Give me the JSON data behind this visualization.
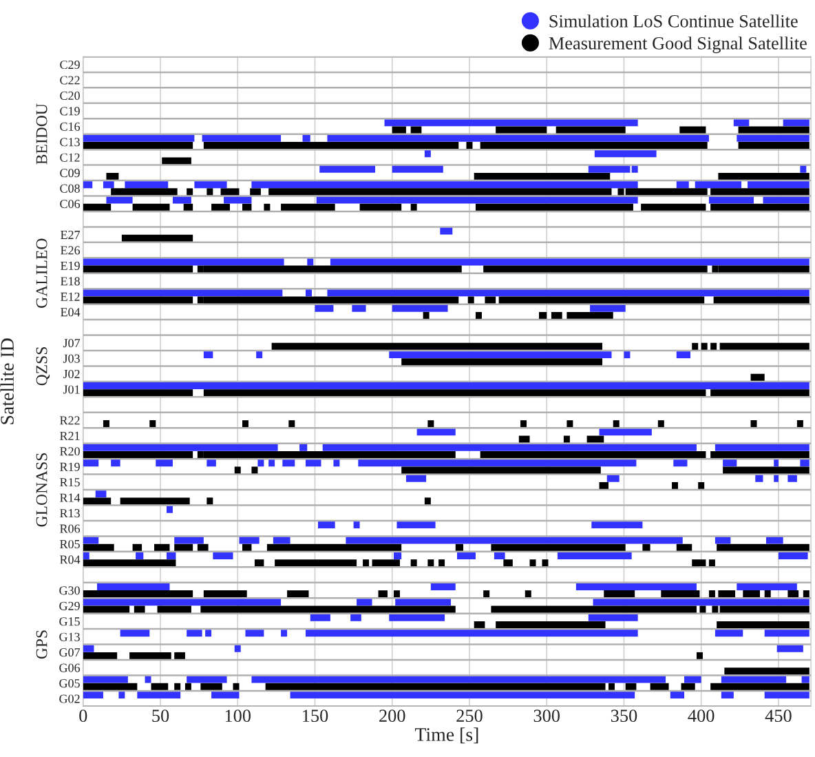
{
  "chart_data": {
    "type": "bar",
    "orientation": "horizontal",
    "xlabel": "Time [s]",
    "ylabel": "Satellite ID",
    "xlim": [
      0,
      471
    ],
    "xticks": [
      0,
      50,
      100,
      150,
      200,
      250,
      300,
      350,
      400,
      450
    ],
    "categories": [
      "C29",
      "C22",
      "C20",
      "C19",
      "C16",
      "C13",
      "C12",
      "C09",
      "C08",
      "C06",
      null,
      "E27",
      "E26",
      "E19",
      "E18",
      "E12",
      "E04",
      null,
      "J07",
      "J03",
      "J02",
      "J01",
      null,
      "R22",
      "R21",
      "R20",
      "R19",
      "R15",
      "R14",
      "R13",
      "R06",
      "R05",
      "R04",
      null,
      "G30",
      "G29",
      "G15",
      "G13",
      "G07",
      "G06",
      "G05",
      "G02"
    ],
    "annotations": [
      "BEIDOU",
      "GALILEO",
      "QZSS",
      "GLONASS",
      "GPS"
    ],
    "grid": true,
    "legend": "top right",
    "series": [
      {
        "name": "Simulation LoS Continue Satellite",
        "color": "#3333ff",
        "x": [
          "C16",
          "C16",
          "C16",
          "C13",
          "C13",
          "C13",
          "C13",
          "C13",
          "C12",
          "C12",
          "C09",
          "C09",
          "C09",
          "C09",
          "C09",
          "C08",
          "C08",
          "C08",
          "C08",
          "C08",
          "C08",
          "C08",
          "C08",
          "C06",
          "C06",
          "C06",
          "C06",
          "C06",
          "C06",
          "E27",
          "E19",
          "E19",
          "E19",
          "E12",
          "E12",
          "E12",
          "E04",
          "E04",
          "E04",
          "E04",
          "J03",
          "J03",
          "J03",
          "J03",
          "J03",
          "J01",
          "R21",
          "R21",
          "R20",
          "R20",
          "R20",
          "R20",
          "R19",
          "R19",
          "R19",
          "R19",
          "R19",
          "R19",
          "R19",
          "R19",
          "R19",
          "R19",
          "R19",
          "R19",
          "R19",
          "R19",
          "R15",
          "R15",
          "R15",
          "R15",
          "R15",
          "R14",
          "R13",
          "R06",
          "R06",
          "R06",
          "R06",
          "R05",
          "R05",
          "R05",
          "R05",
          "R05",
          "R05",
          "R05",
          "R04",
          "R04",
          "R04",
          "R04",
          "R04",
          "R04",
          "R04",
          "R04",
          "R04",
          "G30",
          "G30",
          "G30",
          "G30",
          "G29",
          "G29",
          "G29",
          "G29",
          "G15",
          "G15",
          "G15",
          "G15",
          "G13",
          "G13",
          "G13",
          "G13",
          "G13",
          "G13",
          "G13",
          "G13",
          "G07",
          "G07",
          "G07",
          "G05",
          "G05",
          "G05",
          "G05",
          "G05",
          "G05",
          "G05",
          "G02",
          "G02",
          "G02",
          "G02",
          "G02",
          "G02",
          "G02",
          "G02"
        ],
        "base": [
          195,
          421,
          453,
          0,
          77,
          142,
          158,
          423,
          221,
          331,
          153,
          200,
          327,
          355,
          464,
          0,
          13,
          27,
          72,
          109,
          384,
          396,
          430,
          15,
          58,
          91,
          151,
          405,
          440,
          231,
          0,
          145,
          160,
          0,
          144,
          158,
          150,
          174,
          200,
          328,
          78,
          112,
          198,
          350,
          384,
          0,
          216,
          334,
          0,
          140,
          155,
          409,
          0,
          18,
          47,
          80,
          113,
          120,
          129,
          144,
          162,
          178,
          382,
          414,
          447,
          464,
          209,
          339,
          435,
          447,
          456,
          8,
          54,
          152,
          175,
          203,
          329,
          0,
          59,
          101,
          123,
          170,
          409,
          442,
          0,
          34,
          54,
          84,
          201,
          242,
          266,
          307,
          450,
          9,
          225,
          319,
          423,
          0,
          177,
          202,
          330,
          147,
          173,
          198,
          327,
          24,
          67,
          79,
          105,
          128,
          144,
          409,
          441,
          0,
          98,
          449,
          0,
          40,
          67,
          109,
          389,
          413,
          465,
          0,
          23,
          35,
          83,
          134,
          380,
          413,
          441
        ],
        "values": [
          164,
          10,
          17,
          72,
          51,
          5,
          247,
          47,
          4,
          40,
          36,
          33,
          27,
          4,
          4,
          6,
          7,
          28,
          21,
          250,
          8,
          30,
          40,
          17,
          12,
          18,
          208,
          29,
          30,
          8,
          130,
          4,
          310,
          129,
          4,
          312,
          12,
          9,
          36,
          23,
          6,
          4,
          144,
          4,
          9,
          470,
          25,
          34,
          126,
          5,
          242,
          61,
          10,
          6,
          11,
          6,
          4,
          4,
          8,
          10,
          4,
          180,
          9,
          9,
          3,
          6,
          13,
          8,
          5,
          3,
          6,
          7,
          4,
          11,
          4,
          25,
          33,
          10,
          19,
          13,
          11,
          218,
          10,
          11,
          4,
          5,
          6,
          13,
          5,
          12,
          7,
          48,
          19,
          47,
          16,
          78,
          39,
          128,
          10,
          36,
          140,
          13,
          7,
          36,
          32,
          19,
          10,
          4,
          12,
          4,
          215,
          18,
          29,
          7,
          4,
          17,
          29,
          4,
          26,
          268,
          11,
          42,
          5,
          13,
          4,
          28,
          18,
          223,
          9,
          8,
          29
        ]
      },
      {
        "name": "Measurement Good Signal Satellite",
        "color": "#000000",
        "x": [
          "C16",
          "C16",
          "C16",
          "C16",
          "C16",
          "C16",
          "C13",
          "C13",
          "C13",
          "C13",
          "C13",
          "C12",
          "C09",
          "C09",
          "C09",
          "C08",
          "C08",
          "C08",
          "C08",
          "C08",
          "C08",
          "C08",
          "C08",
          "C08",
          "C06",
          "C06",
          "C06",
          "C06",
          "C06",
          "C06",
          "C06",
          "C06",
          "C06",
          "C06",
          "C06",
          "C06",
          "E27",
          "E19",
          "E19",
          "E19",
          "E19",
          "E19",
          "E19",
          "E12",
          "E12",
          "E12",
          "E12",
          "E12",
          "E12",
          "E12",
          "E04",
          "E04",
          "E04",
          "E04",
          "E04",
          "J07",
          "J07",
          "J07",
          "J07",
          "J07",
          "J03",
          "J02",
          "J01",
          "J01",
          "J01",
          "R22",
          "R22",
          "R22",
          "R22",
          "R22",
          "R22",
          "R22",
          "R22",
          "R22",
          "R22",
          "R22",
          "R21",
          "R21",
          "R21",
          "R20",
          "R20",
          "R20",
          "R20",
          "R20",
          "R19",
          "R19",
          "R19",
          "R19",
          "R15",
          "R15",
          "R15",
          "R14",
          "R14",
          "R14",
          "R14",
          "R05",
          "R05",
          "R05",
          "R05",
          "R05",
          "R05",
          "R05",
          "R05",
          "R05",
          "R05",
          "R05",
          "R05",
          "R04",
          "R04",
          "R04",
          "R04",
          "R04",
          "R04",
          "R04",
          "R04",
          "R04",
          "R04",
          "R04",
          "R04",
          "R04",
          "G30",
          "G30",
          "G30",
          "G30",
          "G30",
          "G30",
          "G30",
          "G30",
          "G30",
          "G30",
          "G30",
          "G30",
          "G30",
          "G30",
          "G30",
          "G29",
          "G29",
          "G29",
          "G29",
          "G29",
          "G29",
          "G29",
          "G29",
          "G15",
          "G15",
          "G15",
          "G07",
          "G07",
          "G07",
          "G07",
          "G06",
          "G05",
          "G05",
          "G05",
          "G05",
          "G05",
          "G05",
          "G05",
          "G05",
          "G05",
          "G05",
          "G05",
          "G05"
        ],
        "base": [
          200,
          212,
          267,
          306,
          386,
          424,
          0,
          78,
          248,
          257,
          424,
          51,
          15,
          253,
          411,
          18,
          67,
          80,
          89,
          108,
          120,
          346,
          351,
          406,
          0,
          32,
          65,
          83,
          103,
          117,
          128,
          179,
          212,
          254,
          361,
          406,
          25,
          0,
          74,
          78,
          259,
          407,
          411,
          0,
          74,
          78,
          249,
          260,
          269,
          408,
          220,
          254,
          295,
          303,
          313,
          122,
          394,
          400,
          406,
          412,
          206,
          432,
          0,
          78,
          406,
          13,
          43,
          103,
          133,
          223,
          283,
          313,
          343,
          372,
          432,
          462,
          282,
          311,
          326,
          0,
          74,
          78,
          257,
          406,
          98,
          109,
          206,
          414,
          334,
          381,
          398,
          0,
          24,
          80,
          221,
          0,
          32,
          46,
          59,
          74,
          103,
          119,
          241,
          264,
          362,
          384,
          410,
          0,
          111,
          124,
          181,
          187,
          212,
          223,
          230,
          272,
          289,
          297,
          394,
          405,
          0,
          78,
          132,
          191,
          201,
          259,
          286,
          337,
          374,
          405,
          411,
          427,
          441,
          456,
          466,
          0,
          33,
          48,
          76,
          264,
          399,
          407,
          412,
          253,
          267,
          410,
          0,
          30,
          59,
          397,
          415,
          0,
          44,
          59,
          66,
          76,
          97,
          118,
          340,
          351,
          367,
          387,
          406
        ],
        "values": [
          9,
          7,
          33,
          45,
          17,
          46,
          71,
          165,
          4,
          147,
          46,
          19,
          8,
          88,
          59,
          43,
          4,
          4,
          12,
          7,
          222,
          4,
          53,
          64,
          18,
          24,
          6,
          12,
          6,
          4,
          35,
          27,
          4,
          102,
          42,
          64,
          46,
          71,
          4,
          167,
          145,
          4,
          59,
          71,
          4,
          165,
          4,
          7,
          133,
          62,
          4,
          4,
          5,
          7,
          30,
          214,
          4,
          4,
          4,
          58,
          130,
          9,
          71,
          325,
          64,
          4,
          4,
          4,
          4,
          4,
          4,
          4,
          4,
          4,
          4,
          4,
          7,
          4,
          11,
          71,
          4,
          163,
          146,
          64,
          4,
          4,
          129,
          56,
          6,
          4,
          4,
          18,
          45,
          4,
          4,
          20,
          6,
          10,
          12,
          7,
          6,
          87,
          5,
          87,
          5,
          10,
          60,
          60,
          6,
          53,
          4,
          18,
          4,
          4,
          4,
          6,
          4,
          4,
          9,
          4,
          71,
          28,
          14,
          6,
          4,
          4,
          4,
          20,
          25,
          4,
          11,
          11,
          4,
          7,
          4,
          30,
          7,
          22,
          165,
          133,
          4,
          4,
          58,
          7,
          71,
          60,
          22,
          27,
          7,
          4,
          55,
          35,
          11,
          4,
          4,
          14,
          4,
          220,
          4,
          7,
          12,
          9,
          64
        ]
      }
    ]
  }
}
